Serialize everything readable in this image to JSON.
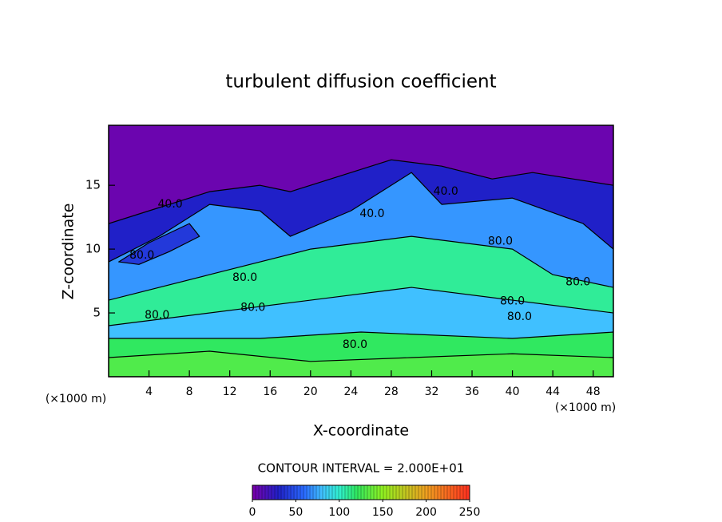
{
  "chart_data": {
    "type": "contour",
    "title": "turbulent diffusion coefficient",
    "xlabel": "X-coordinate",
    "ylabel": "Z-coordinate",
    "x_unit_label": "(×1000 m)",
    "xlim": [
      0,
      50
    ],
    "ylim": [
      0,
      19.7
    ],
    "xticks": [
      4,
      8,
      12,
      16,
      20,
      24,
      28,
      32,
      36,
      40,
      44,
      48
    ],
    "yticks": [
      5,
      10,
      15
    ],
    "contour_interval_text": "CONTOUR INTERVAL = 2.000E+01",
    "colormap": [
      {
        "value": 0,
        "color": "#7a00aa"
      },
      {
        "value": 30,
        "color": "#2020c8"
      },
      {
        "value": 60,
        "color": "#2a6cff"
      },
      {
        "value": 80,
        "color": "#40c0ff"
      },
      {
        "value": 100,
        "color": "#30f0d0"
      },
      {
        "value": 120,
        "color": "#30e860"
      },
      {
        "value": 150,
        "color": "#90f020"
      },
      {
        "value": 200,
        "color": "#f0a020"
      },
      {
        "value": 250,
        "color": "#ff3020"
      }
    ],
    "colorbar": {
      "lim": [
        0,
        250
      ],
      "ticks": [
        0,
        50,
        100,
        150,
        200,
        250
      ]
    },
    "regions": [
      {
        "value": 5,
        "x": [
          0,
          50,
          50,
          0
        ],
        "y": [
          0,
          0,
          19.7,
          19.7
        ]
      },
      {
        "value": 30,
        "x": [
          0,
          4,
          10,
          15,
          18,
          24,
          28,
          33,
          38,
          42,
          46,
          50,
          50,
          0
        ],
        "y": [
          12,
          13,
          14.5,
          15,
          14.5,
          16,
          17,
          16.5,
          15.5,
          16,
          15.5,
          15,
          0,
          0
        ]
      },
      {
        "value": 70,
        "x": [
          0,
          5,
          10,
          15,
          18,
          24,
          30,
          33,
          40,
          47,
          50,
          50,
          0
        ],
        "y": [
          9,
          11,
          13.5,
          13,
          11,
          13,
          16,
          13.5,
          14,
          12,
          10,
          0,
          0
        ]
      },
      {
        "value": 40,
        "x": [
          1,
          4,
          8,
          9,
          6,
          3
        ],
        "y": [
          9,
          10.5,
          12,
          11,
          9.8,
          8.8
        ]
      },
      {
        "value": 110,
        "x": [
          0,
          10,
          20,
          30,
          40,
          44,
          50,
          50,
          0
        ],
        "y": [
          6,
          8,
          10,
          11,
          10,
          8,
          7,
          0,
          0
        ]
      },
      {
        "value": 80,
        "x": [
          0,
          15,
          30,
          40,
          50,
          50,
          0
        ],
        "y": [
          4,
          5.5,
          7,
          6,
          5,
          0,
          0
        ]
      },
      {
        "value": 120,
        "x": [
          0,
          15,
          25,
          40,
          50,
          50,
          0
        ],
        "y": [
          3,
          3,
          3.5,
          3,
          3.5,
          0,
          0
        ]
      },
      {
        "value": 130,
        "x": [
          0,
          10,
          20,
          30,
          40,
          50,
          50,
          0
        ],
        "y": [
          1.5,
          2,
          1.2,
          1.5,
          1.8,
          1.5,
          0,
          0
        ]
      }
    ],
    "contour_labels": [
      {
        "value": 40,
        "label": "40.0",
        "x": 6.1,
        "y": 13.5
      },
      {
        "value": 40,
        "label": "40.0",
        "x": 26.1,
        "y": 12.75
      },
      {
        "value": 40,
        "label": "40.0",
        "x": 33.4,
        "y": 14.5
      },
      {
        "value": 80,
        "label": "80.0",
        "x": 38.8,
        "y": 10.6
      },
      {
        "value": 80,
        "label": "80.0",
        "x": 3.3,
        "y": 9.5
      },
      {
        "value": 80,
        "label": "80.0",
        "x": 13.5,
        "y": 7.75
      },
      {
        "value": 80,
        "label": "80.0",
        "x": 4.8,
        "y": 4.8
      },
      {
        "value": 80,
        "label": "80.0",
        "x": 14.3,
        "y": 5.4
      },
      {
        "value": 80,
        "label": "80.0",
        "x": 40,
        "y": 5.9
      },
      {
        "value": 80,
        "label": "80.0",
        "x": 40.7,
        "y": 4.7
      },
      {
        "value": 80,
        "label": "80.0",
        "x": 46.5,
        "y": 7.4
      },
      {
        "value": 80,
        "label": "80.0",
        "x": 24.4,
        "y": 2.5
      }
    ]
  }
}
